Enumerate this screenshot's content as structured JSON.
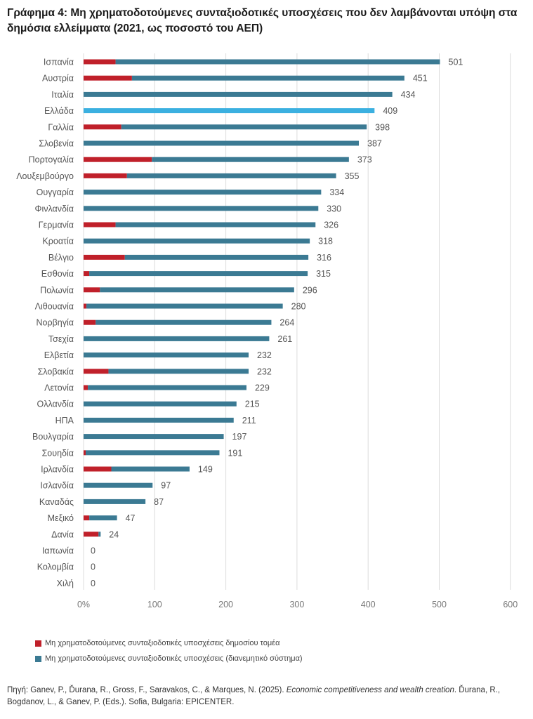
{
  "title": "Γράφημα 4: Μη χρηματοδοτούμενες συνταξιοδοτικές υποσχέσεις που δεν λαμβάνονται υπόψη στα δημόσια ελλείμματα (2021, ως ποσοστό του ΑΕΠ)",
  "legend": {
    "public": "Μη χρηματοδοτούμενες συνταξιοδοτικές υποσχέσεις δημοσίου τομέα",
    "total": "Μη χρηματοδοτούμενες συνταξιοδοτικές υποσχέσεις (διανεμητικό σύστημα)"
  },
  "source": {
    "prefix": "Πηγή: Ganev, P., Ďurana, R., Gross, F., Saravakos, C., & Marques, N. (2025). ",
    "italic": "Economic competitiveness and wealth creation",
    "suffix": ". Ďurana, R., Bogdanov, L., & Ganev, P. (Eds.). Sofia, Bulgaria: EPICENTER."
  },
  "colors": {
    "public": "#c0202a",
    "total": "#3b7a93",
    "highlight": "#3bb0e0"
  },
  "chart_data": {
    "type": "bar",
    "orientation": "horizontal",
    "stacked": true,
    "categories": [
      "Ισπανία",
      "Αυστρία",
      "Ιταλία",
      "Ελλάδα",
      "Γαλλία",
      "Σλοβενία",
      "Πορτογαλία",
      "Λουξεμβούργο",
      "Ουγγαρία",
      "Φινλανδία",
      "Γερμανία",
      "Κροατία",
      "Βέλγιο",
      "Εσθονία",
      "Πολωνία",
      "Λιθουανία",
      "Νορβηγία",
      "Τσεχία",
      "Ελβετία",
      "Σλοβακία",
      "Λετονία",
      "Ολλανδία",
      "ΗΠΑ",
      "Βουλγαρία",
      "Σουηδία",
      "Ιρλανδία",
      "Ισλανδία",
      "Καναδάς",
      "Μεξικό",
      "Δανία",
      "Ιαπωνία",
      "Κολομβία",
      "Χιλή"
    ],
    "totals": [
      501,
      451,
      434,
      409,
      398,
      387,
      373,
      355,
      334,
      330,
      326,
      318,
      316,
      315,
      296,
      280,
      264,
      261,
      232,
      232,
      229,
      215,
      211,
      197,
      191,
      149,
      97,
      87,
      47,
      24,
      0,
      0,
      0
    ],
    "series": [
      {
        "name": "Μη χρηματοδοτούμενες συνταξιοδοτικές υποσχέσεις δημοσίου τομέα",
        "values": [
          45,
          68,
          0,
          0,
          53,
          0,
          96,
          61,
          0,
          0,
          45,
          0,
          58,
          8,
          23,
          4,
          17,
          0,
          0,
          35,
          6,
          0,
          0,
          0,
          3,
          39,
          0,
          0,
          8,
          21,
          0,
          0,
          0
        ]
      },
      {
        "name": "Μη χρηματοδοτούμενες συνταξιοδοτικές υποσχέσεις (διανεμητικό σύστημα)",
        "values": [
          456,
          383,
          434,
          409,
          345,
          387,
          277,
          294,
          334,
          330,
          281,
          318,
          258,
          307,
          273,
          276,
          247,
          261,
          232,
          197,
          223,
          215,
          211,
          197,
          188,
          110,
          97,
          87,
          39,
          3,
          0,
          0,
          0
        ]
      }
    ],
    "highlight_category": "Ελλάδα",
    "xlim": [
      0,
      600
    ],
    "xticks": [
      "0%",
      "100",
      "200",
      "300",
      "400",
      "500",
      "600"
    ],
    "grid": "vertical",
    "legend_position": "bottom-left"
  }
}
